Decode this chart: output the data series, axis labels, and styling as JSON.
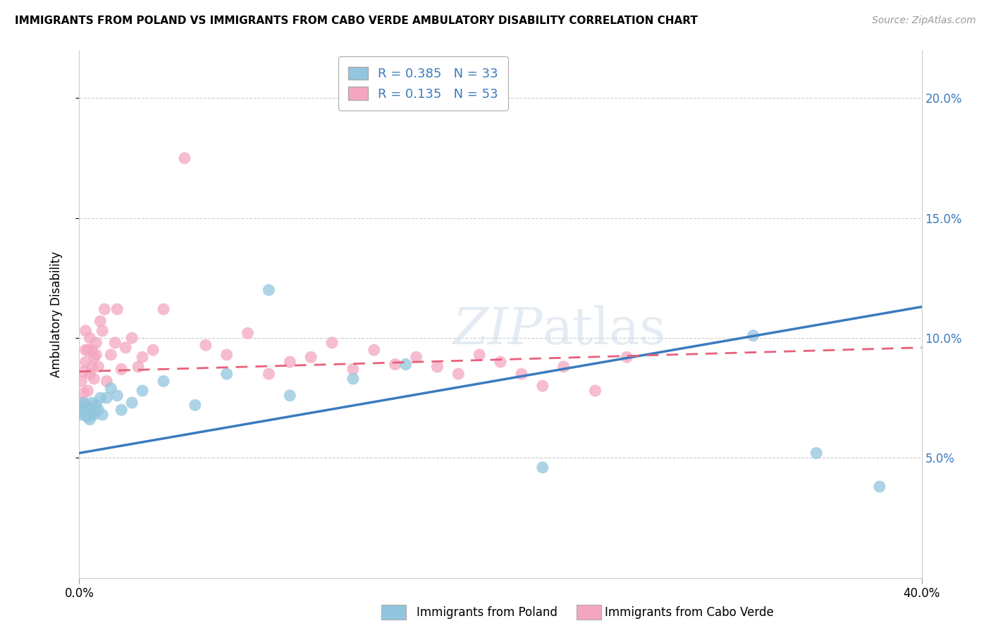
{
  "title": "IMMIGRANTS FROM POLAND VS IMMIGRANTS FROM CABO VERDE AMBULATORY DISABILITY CORRELATION CHART",
  "source": "Source: ZipAtlas.com",
  "xlabel_poland": "Immigrants from Poland",
  "xlabel_caboverde": "Immigrants from Cabo Verde",
  "ylabel": "Ambulatory Disability",
  "xmin": 0.0,
  "xmax": 0.4,
  "ymin": 0.0,
  "ymax": 0.22,
  "yticks": [
    0.05,
    0.1,
    0.15,
    0.2
  ],
  "ytick_labels": [
    "5.0%",
    "10.0%",
    "15.0%",
    "20.0%"
  ],
  "xtick_left": 0.0,
  "xtick_right": 0.4,
  "xtick_left_label": "0.0%",
  "xtick_right_label": "40.0%",
  "poland_R": 0.385,
  "poland_N": 33,
  "caboverde_R": 0.135,
  "caboverde_N": 53,
  "poland_color": "#92c5de",
  "caboverde_color": "#f4a6c0",
  "poland_line_color": "#3a7bbf",
  "caboverde_line_color": "#e8607a",
  "poland_line_start_y": 0.052,
  "poland_line_end_y": 0.113,
  "caboverde_line_start_y": 0.086,
  "caboverde_line_end_y": 0.096,
  "poland_x": [
    0.001,
    0.002,
    0.002,
    0.003,
    0.003,
    0.004,
    0.004,
    0.005,
    0.005,
    0.006,
    0.006,
    0.007,
    0.008,
    0.009,
    0.01,
    0.011,
    0.013,
    0.015,
    0.018,
    0.02,
    0.025,
    0.03,
    0.04,
    0.055,
    0.07,
    0.09,
    0.1,
    0.13,
    0.155,
    0.22,
    0.32,
    0.35,
    0.38
  ],
  "poland_y": [
    0.068,
    0.07,
    0.073,
    0.068,
    0.072,
    0.067,
    0.071,
    0.066,
    0.07,
    0.069,
    0.073,
    0.068,
    0.072,
    0.07,
    0.075,
    0.068,
    0.075,
    0.079,
    0.076,
    0.07,
    0.073,
    0.078,
    0.082,
    0.072,
    0.085,
    0.12,
    0.076,
    0.083,
    0.089,
    0.046,
    0.101,
    0.052,
    0.038
  ],
  "caboverde_x": [
    0.001,
    0.001,
    0.002,
    0.002,
    0.003,
    0.003,
    0.003,
    0.004,
    0.004,
    0.005,
    0.005,
    0.006,
    0.006,
    0.007,
    0.007,
    0.008,
    0.008,
    0.009,
    0.01,
    0.011,
    0.012,
    0.013,
    0.015,
    0.017,
    0.018,
    0.02,
    0.022,
    0.025,
    0.028,
    0.03,
    0.035,
    0.04,
    0.05,
    0.06,
    0.07,
    0.08,
    0.09,
    0.1,
    0.11,
    0.12,
    0.13,
    0.14,
    0.15,
    0.16,
    0.17,
    0.18,
    0.19,
    0.2,
    0.21,
    0.22,
    0.23,
    0.245,
    0.26
  ],
  "caboverde_y": [
    0.073,
    0.082,
    0.077,
    0.086,
    0.09,
    0.095,
    0.103,
    0.078,
    0.095,
    0.1,
    0.085,
    0.088,
    0.095,
    0.092,
    0.083,
    0.093,
    0.098,
    0.088,
    0.107,
    0.103,
    0.112,
    0.082,
    0.093,
    0.098,
    0.112,
    0.087,
    0.096,
    0.1,
    0.088,
    0.092,
    0.095,
    0.112,
    0.175,
    0.097,
    0.093,
    0.102,
    0.085,
    0.09,
    0.092,
    0.098,
    0.087,
    0.095,
    0.089,
    0.092,
    0.088,
    0.085,
    0.093,
    0.09,
    0.085,
    0.08,
    0.088,
    0.078,
    0.092
  ]
}
